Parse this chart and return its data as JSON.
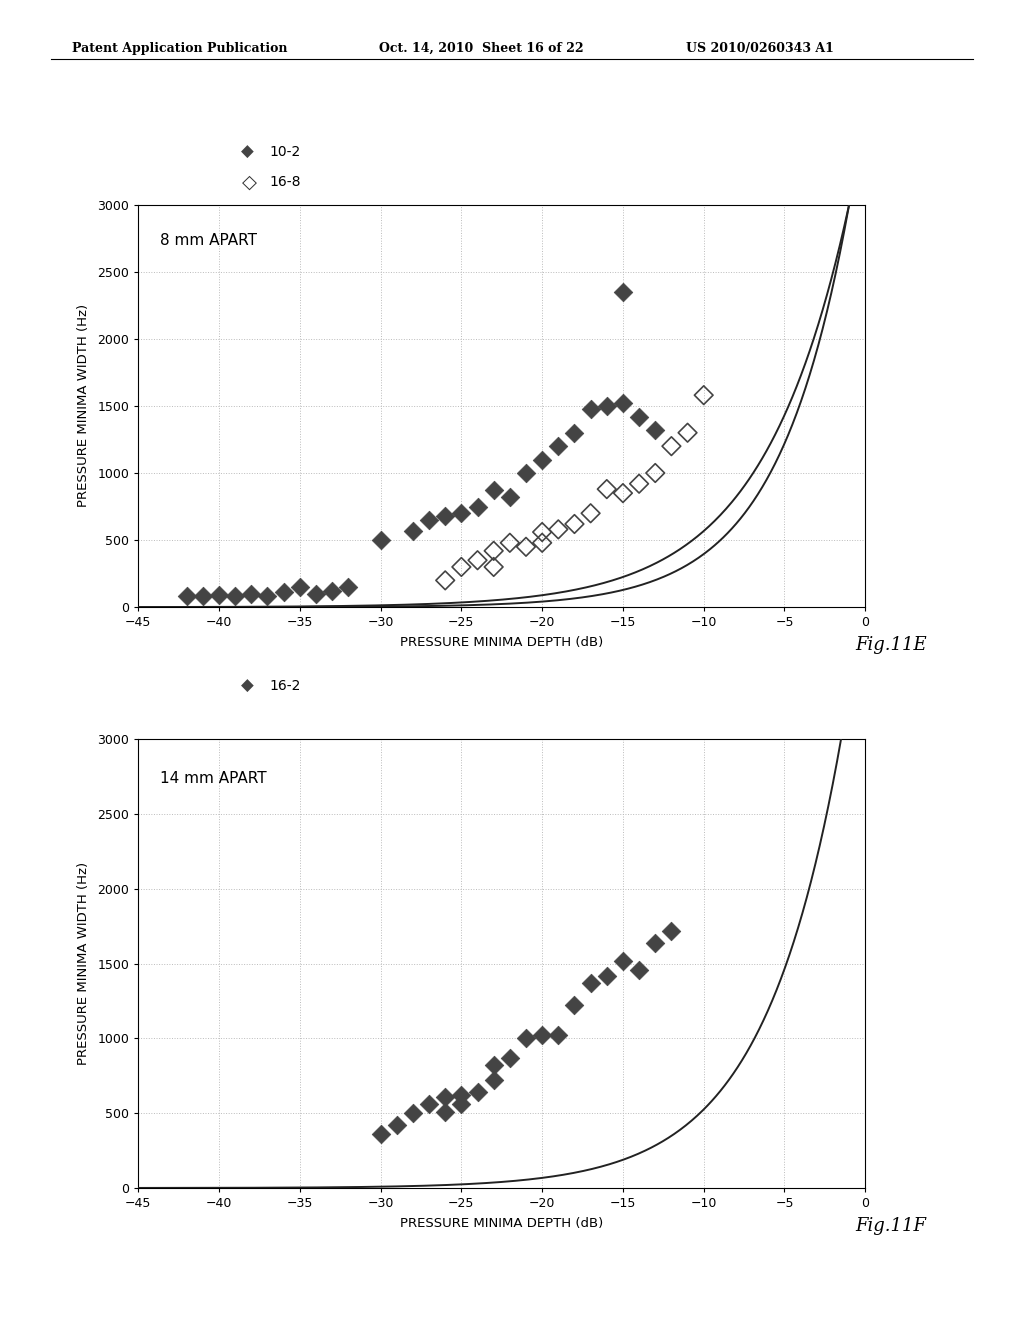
{
  "header_left": "Patent Application Publication",
  "header_mid": "Oct. 14, 2010  Sheet 16 of 22",
  "header_right": "US 2010/0260343 A1",
  "fig_label_E": "Fig.11E",
  "fig_label_F": "Fig.11F",
  "plot1": {
    "title": "8 mm APART",
    "legend1": "10-2",
    "legend2": "16-8",
    "xlabel": "PRESSURE MINIMA DEPTH (dB)",
    "ylabel": "PRESSURE MINIMA WIDTH (Hz)",
    "xlim": [
      -45,
      0
    ],
    "ylim": [
      0,
      3000
    ],
    "xticks": [
      -45,
      -40,
      -35,
      -30,
      -25,
      -20,
      -15,
      -10,
      -5,
      0
    ],
    "yticks": [
      0,
      500,
      1000,
      1500,
      2000,
      2500,
      3000
    ],
    "series1_x": [
      -42,
      -41,
      -40,
      -39,
      -38,
      -37,
      -36,
      -35,
      -34,
      -33,
      -32,
      -30,
      -28,
      -27,
      -26,
      -25,
      -24,
      -23,
      -22,
      -21,
      -20,
      -19,
      -18,
      -17,
      -16,
      -15,
      -15,
      -14,
      -13
    ],
    "series1_y": [
      80,
      80,
      90,
      80,
      100,
      80,
      110,
      150,
      100,
      120,
      150,
      500,
      570,
      650,
      680,
      700,
      750,
      870,
      820,
      1000,
      1100,
      1200,
      1300,
      1480,
      1500,
      1520,
      2350,
      1420,
      1320
    ],
    "series2_x": [
      -26,
      -25,
      -24,
      -23,
      -23,
      -22,
      -21,
      -20,
      -20,
      -19,
      -18,
      -17,
      -16,
      -15,
      -14,
      -13,
      -12,
      -11,
      -10
    ],
    "series2_y": [
      200,
      300,
      350,
      300,
      420,
      480,
      450,
      480,
      560,
      580,
      620,
      700,
      880,
      850,
      920,
      1000,
      1200,
      1300,
      1580
    ],
    "curve1_A": 3000,
    "curve1_B": 0.225,
    "curve1_x0": -1.0,
    "curve2_A": 3000,
    "curve2_B": 0.185,
    "curve2_x0": -1.0
  },
  "plot2": {
    "title": "14 mm APART",
    "legend1": "16-2",
    "xlabel": "PRESSURE MINIMA DEPTH (dB)",
    "ylabel": "PRESSURE MINIMA WIDTH (Hz)",
    "xlim": [
      -45,
      0
    ],
    "ylim": [
      0,
      3000
    ],
    "xticks": [
      -45,
      -40,
      -35,
      -30,
      -25,
      -20,
      -15,
      -10,
      -5,
      0
    ],
    "yticks": [
      0,
      500,
      1000,
      1500,
      2000,
      2500,
      3000
    ],
    "series1_x": [
      -30,
      -29,
      -28,
      -27,
      -26,
      -26,
      -25,
      -25,
      -24,
      -23,
      -23,
      -22,
      -21,
      -20,
      -19,
      -18,
      -17,
      -16,
      -15,
      -14,
      -13,
      -12
    ],
    "series1_y": [
      360,
      420,
      500,
      560,
      510,
      610,
      560,
      620,
      640,
      720,
      820,
      870,
      1000,
      1020,
      1020,
      1220,
      1370,
      1420,
      1520,
      1460,
      1640,
      1720
    ],
    "curve1_A": 3000,
    "curve1_B": 0.205,
    "curve1_x0": -1.5
  },
  "background_color": "#ffffff",
  "plot_bg": "#ffffff",
  "grid_color": "#bbbbbb",
  "marker_color_filled": "#444444",
  "curve_color": "#222222"
}
